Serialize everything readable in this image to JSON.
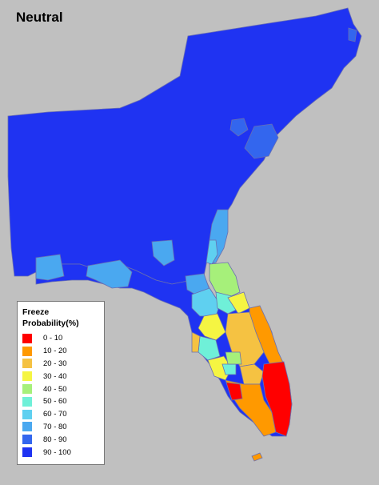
{
  "title": "Neutral",
  "legend": {
    "title_line1": "Freeze",
    "title_line2": "Probability(%)",
    "items": [
      {
        "label": "0 - 10",
        "color": "#ff0000"
      },
      {
        "label": "10 - 20",
        "color": "#ff9900"
      },
      {
        "label": "20 - 30",
        "color": "#f5c242"
      },
      {
        "label": "30 - 40",
        "color": "#f5f542"
      },
      {
        "label": "40 - 50",
        "color": "#a6f07a"
      },
      {
        "label": "50 - 60",
        "color": "#6ff0d8"
      },
      {
        "label": "60 - 70",
        "color": "#5fd0f0"
      },
      {
        "label": "70 - 80",
        "color": "#4aa8f0"
      },
      {
        "label": "80 - 90",
        "color": "#3366ee"
      },
      {
        "label": "90 - 100",
        "color": "#1f33f2"
      }
    ]
  },
  "colors": {
    "background": "#c0c0c0",
    "border": "#6a6fb0"
  }
}
